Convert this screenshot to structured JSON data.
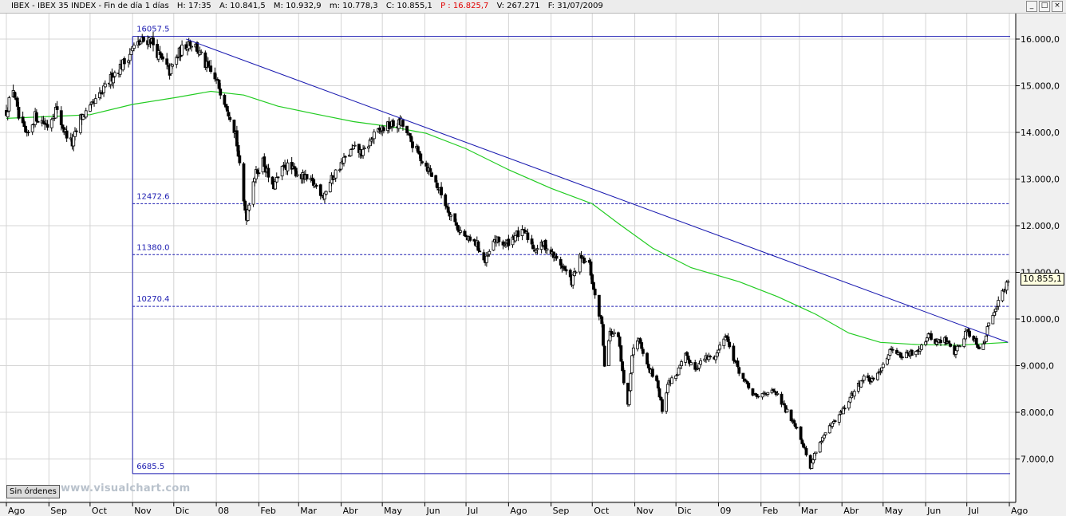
{
  "infobar": {
    "symbol": "IBEX - IBEX 35 INDEX - Fin de día 1 días",
    "hora": "H: 17:35",
    "apertura": "A: 10.841,5",
    "maximo": "M: 10.932,9",
    "minimo": "m: 10.778,3",
    "cierre": "C: 10.855,1",
    "p": "P : 16.825,7",
    "volumen": "V: 267.271",
    "fecha": "F: 31/07/2009",
    "p_color": "#e00000"
  },
  "window_buttons": [
    "_",
    "□",
    "×"
  ],
  "sin_ordenes_label": "Sin órdenes",
  "watermark": "www.visualchart.com",
  "last_price_label": "10.855,1",
  "chart_data": {
    "type": "candlestick",
    "title": "",
    "xlabel": "",
    "ylabel": "",
    "ylim": [
      6500,
      16500
    ],
    "grid": true,
    "x_range": [
      "2007-08-01",
      "2009-07-31"
    ],
    "x_tick_labels": [
      "Ago",
      "Sep",
      "Oct",
      "Nov",
      "Dic",
      "08",
      "Feb",
      "Mar",
      "Abr",
      "May",
      "Jun",
      "Jul",
      "Ago",
      "Sep",
      "Oct",
      "Nov",
      "Dic",
      "09",
      "Feb",
      "Mar",
      "Abr",
      "May",
      "Jun",
      "Jul",
      "Ago"
    ],
    "x_tick_dates": [
      "2007-08-01",
      "2007-09-01",
      "2007-10-01",
      "2007-11-01",
      "2007-12-01",
      "2008-01-01",
      "2008-02-01",
      "2008-03-01",
      "2008-04-01",
      "2008-05-01",
      "2008-06-01",
      "2008-07-01",
      "2008-08-01",
      "2008-09-01",
      "2008-10-01",
      "2008-11-01",
      "2008-12-01",
      "2009-01-01",
      "2009-02-01",
      "2009-03-01",
      "2009-04-01",
      "2009-05-01",
      "2009-06-01",
      "2009-07-01",
      "2009-08-01"
    ],
    "y_ticks": [
      7000,
      8000,
      9000,
      10000,
      11000,
      12000,
      13000,
      14000,
      15000,
      16000
    ],
    "y_tick_labels": [
      "7.000,0",
      "8.000,0",
      "9.000,0",
      "10.000,0",
      "11.000,0",
      "12.000,0",
      "13.000,0",
      "14.000,0",
      "15.000,0",
      "16.000,0"
    ],
    "price_path": [
      [
        "2007-08-01",
        14450
      ],
      [
        "2007-08-06",
        14950
      ],
      [
        "2007-08-10",
        14300
      ],
      [
        "2007-08-16",
        13900
      ],
      [
        "2007-08-22",
        14350
      ],
      [
        "2007-08-31",
        14150
      ],
      [
        "2007-09-06",
        14500
      ],
      [
        "2007-09-12",
        14050
      ],
      [
        "2007-09-18",
        13750
      ],
      [
        "2007-09-24",
        14300
      ],
      [
        "2007-10-01",
        14500
      ],
      [
        "2007-10-10",
        14850
      ],
      [
        "2007-10-18",
        15250
      ],
      [
        "2007-10-26",
        15500
      ],
      [
        "2007-11-01",
        15800
      ],
      [
        "2007-11-08",
        15950
      ],
      [
        "2007-11-14",
        16000
      ],
      [
        "2007-11-21",
        15600
      ],
      [
        "2007-11-28",
        15300
      ],
      [
        "2007-12-05",
        15700
      ],
      [
        "2007-12-12",
        15950
      ],
      [
        "2007-12-17",
        15850
      ],
      [
        "2007-12-24",
        15450
      ],
      [
        "2008-01-02",
        15050
      ],
      [
        "2008-01-09",
        14550
      ],
      [
        "2008-01-15",
        14000
      ],
      [
        "2008-01-21",
        12500
      ],
      [
        "2008-01-23",
        12200
      ],
      [
        "2008-01-28",
        13000
      ],
      [
        "2008-02-04",
        13400
      ],
      [
        "2008-02-11",
        12800
      ],
      [
        "2008-02-20",
        13300
      ],
      [
        "2008-02-28",
        13150
      ],
      [
        "2008-03-06",
        13000
      ],
      [
        "2008-03-14",
        12850
      ],
      [
        "2008-03-19",
        12650
      ],
      [
        "2008-03-27",
        13100
      ],
      [
        "2008-04-03",
        13400
      ],
      [
        "2008-04-10",
        13650
      ],
      [
        "2008-04-17",
        13550
      ],
      [
        "2008-04-24",
        13900
      ],
      [
        "2008-05-02",
        14100
      ],
      [
        "2008-05-08",
        14150
      ],
      [
        "2008-05-15",
        14200
      ],
      [
        "2008-05-21",
        13850
      ],
      [
        "2008-05-28",
        13500
      ],
      [
        "2008-06-04",
        13200
      ],
      [
        "2008-06-11",
        12800
      ],
      [
        "2008-06-18",
        12350
      ],
      [
        "2008-06-25",
        11950
      ],
      [
        "2008-07-02",
        11700
      ],
      [
        "2008-07-09",
        11600
      ],
      [
        "2008-07-15",
        11200
      ],
      [
        "2008-07-22",
        11700
      ],
      [
        "2008-07-30",
        11600
      ],
      [
        "2008-08-06",
        11800
      ],
      [
        "2008-08-13",
        11850
      ],
      [
        "2008-08-20",
        11500
      ],
      [
        "2008-08-27",
        11600
      ],
      [
        "2008-09-03",
        11350
      ],
      [
        "2008-09-10",
        11100
      ],
      [
        "2008-09-16",
        10800
      ],
      [
        "2008-09-22",
        11300
      ],
      [
        "2008-09-29",
        11150
      ],
      [
        "2008-10-03",
        10450
      ],
      [
        "2008-10-08",
        9900
      ],
      [
        "2008-10-10",
        9050
      ],
      [
        "2008-10-14",
        9700
      ],
      [
        "2008-10-20",
        9600
      ],
      [
        "2008-10-24",
        8600
      ],
      [
        "2008-10-27",
        8150
      ],
      [
        "2008-10-30",
        9250
      ],
      [
        "2008-11-04",
        9650
      ],
      [
        "2008-11-10",
        9000
      ],
      [
        "2008-11-17",
        8700
      ],
      [
        "2008-11-21",
        8050
      ],
      [
        "2008-11-25",
        8600
      ],
      [
        "2008-12-02",
        8850
      ],
      [
        "2008-12-08",
        9200
      ],
      [
        "2008-12-15",
        8950
      ],
      [
        "2008-12-22",
        9150
      ],
      [
        "2008-12-30",
        9200
      ],
      [
        "2009-01-06",
        9700
      ],
      [
        "2009-01-09",
        9400
      ],
      [
        "2009-01-15",
        8950
      ],
      [
        "2009-01-22",
        8550
      ],
      [
        "2009-01-29",
        8300
      ],
      [
        "2009-02-05",
        8450
      ],
      [
        "2009-02-12",
        8400
      ],
      [
        "2009-02-19",
        8050
      ],
      [
        "2009-02-26",
        7750
      ],
      [
        "2009-03-04",
        7300
      ],
      [
        "2009-03-09",
        6800
      ],
      [
        "2009-03-13",
        7200
      ],
      [
        "2009-03-20",
        7550
      ],
      [
        "2009-03-27",
        7800
      ],
      [
        "2009-04-03",
        8100
      ],
      [
        "2009-04-10",
        8450
      ],
      [
        "2009-04-17",
        8750
      ],
      [
        "2009-04-24",
        8650
      ],
      [
        "2009-05-01",
        9050
      ],
      [
        "2009-05-08",
        9400
      ],
      [
        "2009-05-14",
        9200
      ],
      [
        "2009-05-21",
        9250
      ],
      [
        "2009-05-28",
        9400
      ],
      [
        "2009-06-03",
        9650
      ],
      [
        "2009-06-09",
        9500
      ],
      [
        "2009-06-15",
        9550
      ],
      [
        "2009-06-22",
        9300
      ],
      [
        "2009-06-26",
        9450
      ],
      [
        "2009-07-01",
        9750
      ],
      [
        "2009-07-06",
        9600
      ],
      [
        "2009-07-10",
        9400
      ],
      [
        "2009-07-14",
        9550
      ],
      [
        "2009-07-17",
        9900
      ],
      [
        "2009-07-21",
        10200
      ],
      [
        "2009-07-24",
        10400
      ],
      [
        "2009-07-29",
        10650
      ],
      [
        "2009-07-31",
        10855
      ]
    ],
    "moving_average": {
      "color": "#22cc22",
      "points": [
        [
          "2007-08-01",
          14300
        ],
        [
          "2007-09-10",
          14350
        ],
        [
          "2007-10-01",
          14380
        ],
        [
          "2007-11-01",
          14600
        ],
        [
          "2007-12-03",
          14750
        ],
        [
          "2007-12-28",
          14880
        ],
        [
          "2008-01-21",
          14800
        ],
        [
          "2008-02-15",
          14560
        ],
        [
          "2008-03-14",
          14390
        ],
        [
          "2008-04-10",
          14230
        ],
        [
          "2008-05-08",
          14120
        ],
        [
          "2008-06-02",
          13980
        ],
        [
          "2008-07-01",
          13650
        ],
        [
          "2008-08-01",
          13200
        ],
        [
          "2008-09-01",
          12800
        ],
        [
          "2008-10-01",
          12470
        ],
        [
          "2008-10-20",
          12050
        ],
        [
          "2008-11-14",
          11520
        ],
        [
          "2008-12-12",
          11100
        ],
        [
          "2009-01-16",
          10800
        ],
        [
          "2009-02-13",
          10480
        ],
        [
          "2009-03-13",
          10100
        ],
        [
          "2009-04-06",
          9700
        ],
        [
          "2009-04-29",
          9500
        ],
        [
          "2009-05-28",
          9450
        ],
        [
          "2009-06-25",
          9440
        ],
        [
          "2009-07-31",
          9500
        ]
      ]
    },
    "trend_line": {
      "color": "#1a1ab0",
      "from": [
        "2007-12-10",
        16000
      ],
      "to": [
        "2009-07-31",
        9500
      ]
    },
    "retracement": {
      "color": "#1a1ab0",
      "start_date": "2007-11-01",
      "levels": [
        {
          "value": 16057.5,
          "label": "16057.5",
          "style": "solid"
        },
        {
          "value": 12472.6,
          "label": "12472.6",
          "style": "dashed"
        },
        {
          "value": 11380.0,
          "label": "11380.0",
          "style": "dashed"
        },
        {
          "value": 10270.4,
          "label": "10270.4",
          "style": "dashed"
        },
        {
          "value": 6685.5,
          "label": "6685.5",
          "style": "solid"
        }
      ]
    },
    "last_price": 10855.1,
    "candle_color": "#000000"
  }
}
